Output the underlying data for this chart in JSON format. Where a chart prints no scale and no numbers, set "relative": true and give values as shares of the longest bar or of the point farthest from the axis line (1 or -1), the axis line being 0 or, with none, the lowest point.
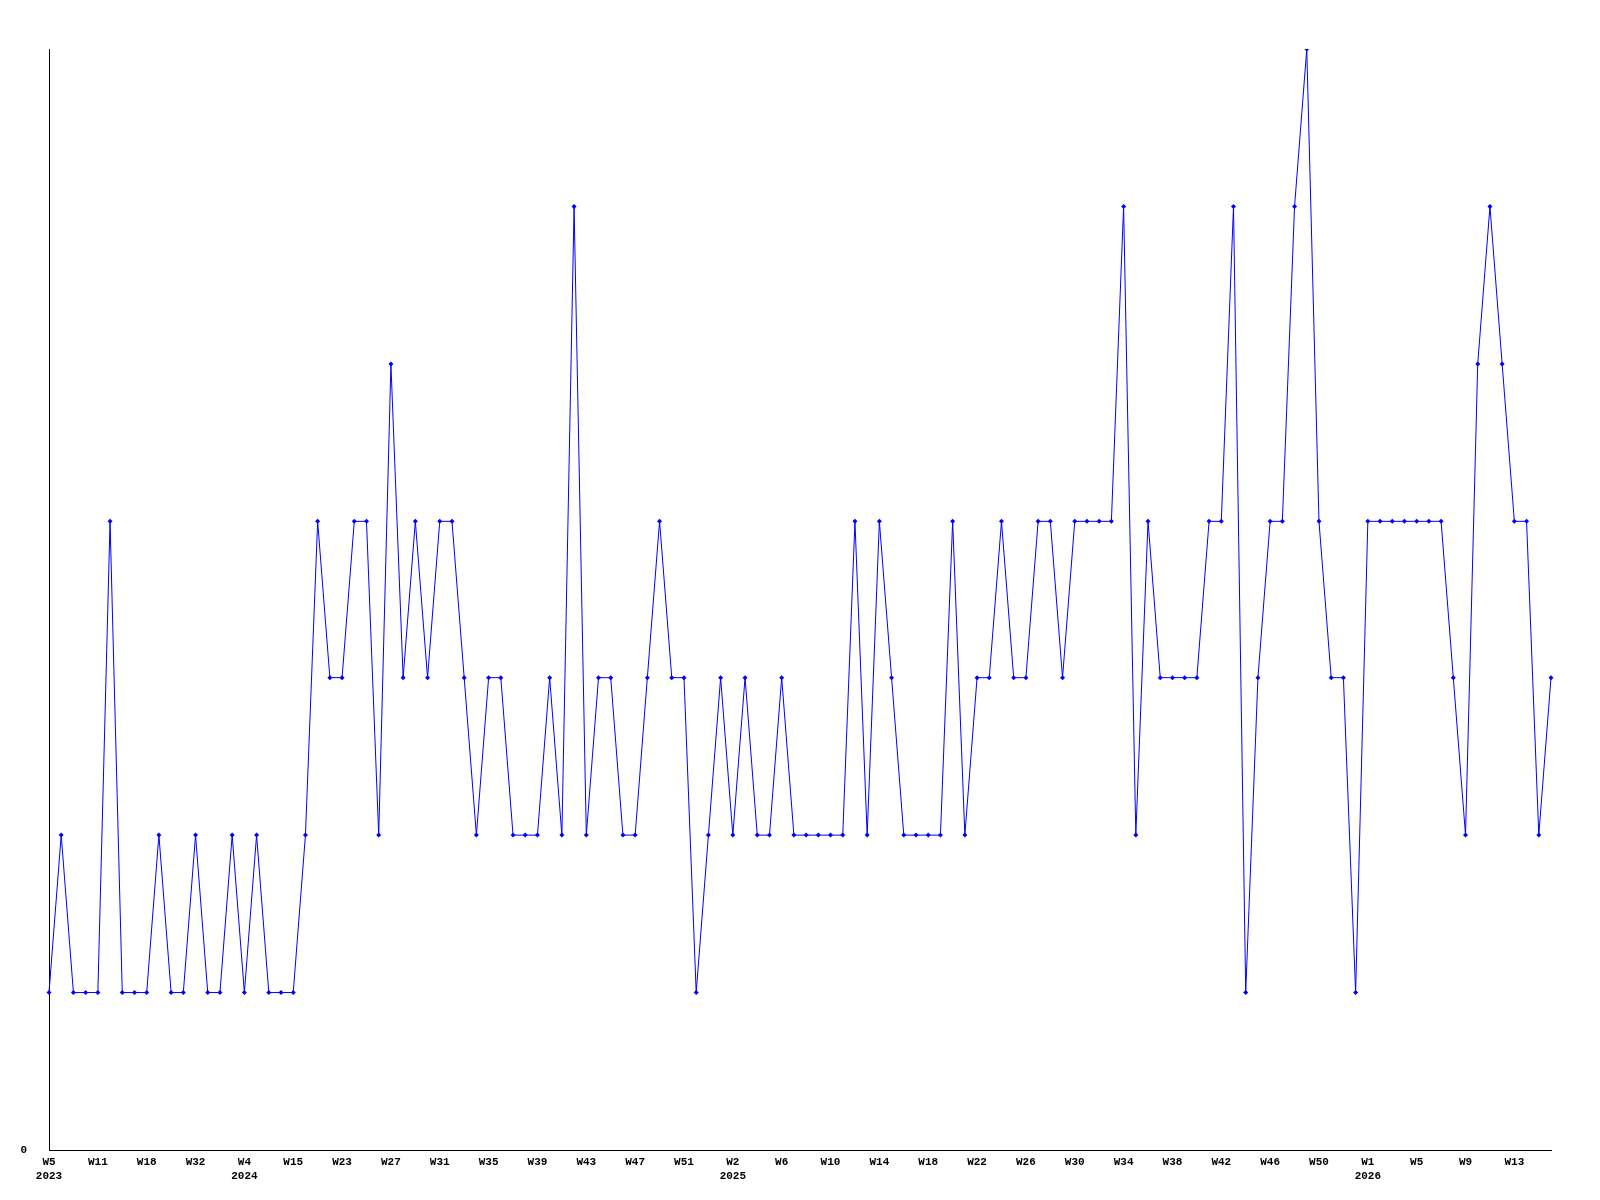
{
  "chart_data": {
    "type": "line",
    "relative": true,
    "color": "#0000ff",
    "marker": "diamond",
    "line_style": "solid",
    "grid": false,
    "legend": false,
    "annotations": [
      "0"
    ],
    "categories": [
      "W5\n2023",
      null,
      null,
      null,
      "W11",
      null,
      null,
      null,
      "W18",
      null,
      null,
      null,
      "W32",
      null,
      null,
      null,
      "W4\n2024",
      null,
      null,
      null,
      "W15",
      null,
      null,
      null,
      "W23",
      null,
      null,
      null,
      "W27",
      null,
      null,
      null,
      "W31",
      null,
      null,
      null,
      "W35",
      null,
      null,
      null,
      "W39",
      null,
      null,
      null,
      "W43",
      null,
      null,
      null,
      "W47",
      null,
      null,
      null,
      "W51",
      null,
      null,
      null,
      "W2\n2025",
      null,
      null,
      null,
      "W6",
      null,
      null,
      null,
      "W10",
      null,
      null,
      null,
      "W14",
      null,
      null,
      null,
      "W18",
      null,
      null,
      null,
      "W22",
      null,
      null,
      null,
      "W26",
      null,
      null,
      null,
      "W30",
      null,
      null,
      null,
      "W34",
      null,
      null,
      null,
      "W38",
      null,
      null,
      null,
      "W42",
      null,
      null,
      null,
      "W46",
      null,
      null,
      null,
      "W50",
      null,
      null,
      null,
      "W1\n2026",
      null,
      null,
      null,
      "W5",
      null,
      null,
      null,
      "W9",
      null,
      null,
      null,
      "W13",
      null,
      null,
      null
    ],
    "values": [
      0.143,
      0.286,
      0.143,
      0.143,
      0.143,
      0.571,
      0.143,
      0.143,
      0.143,
      0.286,
      0.143,
      0.143,
      0.286,
      0.143,
      0.143,
      0.286,
      0.143,
      0.286,
      0.143,
      0.143,
      0.143,
      0.286,
      0.571,
      0.429,
      0.429,
      0.571,
      0.571,
      0.286,
      0.714,
      0.429,
      0.571,
      0.429,
      0.571,
      0.571,
      0.429,
      0.286,
      0.429,
      0.429,
      0.286,
      0.286,
      0.286,
      0.429,
      0.286,
      0.857,
      0.286,
      0.429,
      0.429,
      0.286,
      0.286,
      0.429,
      0.571,
      0.429,
      0.429,
      0.143,
      0.286,
      0.429,
      0.286,
      0.429,
      0.286,
      0.286,
      0.429,
      0.286,
      0.286,
      0.286,
      0.286,
      0.286,
      0.571,
      0.286,
      0.571,
      0.429,
      0.286,
      0.286,
      0.286,
      0.286,
      0.571,
      0.286,
      0.429,
      0.429,
      0.571,
      0.429,
      0.429,
      0.571,
      0.571,
      0.429,
      0.571,
      0.571,
      0.571,
      0.571,
      0.857,
      0.286,
      0.571,
      0.429,
      0.429,
      0.429,
      0.429,
      0.571,
      0.571,
      0.857,
      0.143,
      0.429,
      0.571,
      0.571,
      0.857,
      1,
      0.571,
      0.429,
      0.429,
      0.143,
      0.571,
      0.571,
      0.571,
      0.571,
      0.571,
      0.571,
      0.571,
      0.429,
      0.286,
      0.714,
      0.857,
      0.714,
      0.571,
      0.571,
      0.286,
      0.429
    ]
  }
}
